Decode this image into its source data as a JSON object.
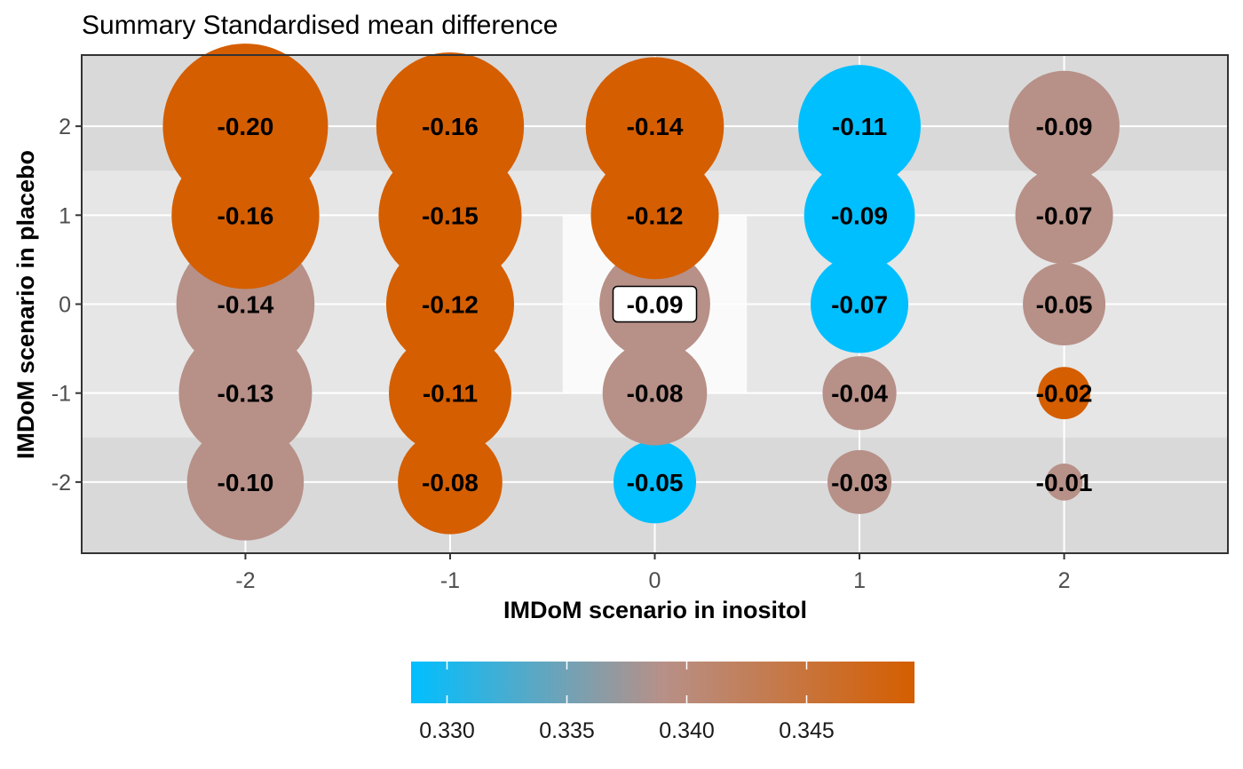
{
  "chart_data": {
    "type": "bubble",
    "title": "Summary Standardised mean difference",
    "xlabel": "IMDoM scenario in inositol",
    "ylabel": "IMDoM scenario in placebo",
    "x_ticks": [
      "-2",
      "-1",
      "0",
      "1",
      "2"
    ],
    "y_ticks": [
      "-2",
      "-1",
      "0",
      "1",
      "2"
    ],
    "xlim": [
      -2.8,
      2.8
    ],
    "ylim": [
      -2.8,
      2.8
    ],
    "size_encodes": "absolute standardised mean difference",
    "fill_encodes": "standard error",
    "highlighted_cell": {
      "x": 0,
      "y": 0
    },
    "background_bands": "grey shading darkens with distance from (0,0): innermost |x|<=0.5,|y|<=1 lightest",
    "legend": {
      "type": "colorbar",
      "position": "bottom",
      "range": [
        0.3285,
        0.3495
      ],
      "ticks": [
        "0.330",
        "0.335",
        "0.340",
        "0.345"
      ],
      "tick_values": [
        0.33,
        0.335,
        0.34,
        0.345
      ],
      "colors": [
        "#00bfff",
        "#b79088",
        "#d55e00"
      ]
    },
    "points": [
      {
        "x": -2,
        "y": 2,
        "value": -0.2,
        "label": "-0.20",
        "color": "#d55e00"
      },
      {
        "x": -1,
        "y": 2,
        "value": -0.16,
        "label": "-0.16",
        "color": "#d55e00"
      },
      {
        "x": 0,
        "y": 2,
        "value": -0.14,
        "label": "-0.14",
        "color": "#d55e00"
      },
      {
        "x": 1,
        "y": 2,
        "value": -0.11,
        "label": "-0.11",
        "color": "#00bfff"
      },
      {
        "x": 2,
        "y": 2,
        "value": -0.09,
        "label": "-0.09",
        "color": "#b79088"
      },
      {
        "x": -2,
        "y": 1,
        "value": -0.16,
        "label": "-0.16",
        "color": "#d55e00"
      },
      {
        "x": -1,
        "y": 1,
        "value": -0.15,
        "label": "-0.15",
        "color": "#d55e00"
      },
      {
        "x": 0,
        "y": 1,
        "value": -0.12,
        "label": "-0.12",
        "color": "#d55e00"
      },
      {
        "x": 1,
        "y": 1,
        "value": -0.09,
        "label": "-0.09",
        "color": "#00bfff"
      },
      {
        "x": 2,
        "y": 1,
        "value": -0.07,
        "label": "-0.07",
        "color": "#b79088"
      },
      {
        "x": -2,
        "y": 0,
        "value": -0.14,
        "label": "-0.14",
        "color": "#b79088"
      },
      {
        "x": -1,
        "y": 0,
        "value": -0.12,
        "label": "-0.12",
        "color": "#d55e00"
      },
      {
        "x": 0,
        "y": 0,
        "value": -0.09,
        "label": "-0.09",
        "color": "#b79088",
        "boxed": true
      },
      {
        "x": 1,
        "y": 0,
        "value": -0.07,
        "label": "-0.07",
        "color": "#00bfff"
      },
      {
        "x": 2,
        "y": 0,
        "value": -0.05,
        "label": "-0.05",
        "color": "#b79088"
      },
      {
        "x": -2,
        "y": -1,
        "value": -0.13,
        "label": "-0.13",
        "color": "#b79088"
      },
      {
        "x": -1,
        "y": -1,
        "value": -0.11,
        "label": "-0.11",
        "color": "#d55e00"
      },
      {
        "x": 0,
        "y": -1,
        "value": -0.08,
        "label": "-0.08",
        "color": "#b79088"
      },
      {
        "x": 1,
        "y": -1,
        "value": -0.04,
        "label": "-0.04",
        "color": "#b79088"
      },
      {
        "x": 2,
        "y": -1,
        "value": -0.02,
        "label": "-0.02",
        "color": "#d55e00"
      },
      {
        "x": -2,
        "y": -2,
        "value": -0.1,
        "label": "-0.10",
        "color": "#b79088"
      },
      {
        "x": -1,
        "y": -2,
        "value": -0.08,
        "label": "-0.08",
        "color": "#d55e00"
      },
      {
        "x": 0,
        "y": -2,
        "value": -0.05,
        "label": "-0.05",
        "color": "#00bfff"
      },
      {
        "x": 1,
        "y": -2,
        "value": -0.03,
        "label": "-0.03",
        "color": "#b79088"
      },
      {
        "x": 2,
        "y": -2,
        "value": -0.01,
        "label": "-0.01",
        "color": "#b79088"
      }
    ]
  }
}
